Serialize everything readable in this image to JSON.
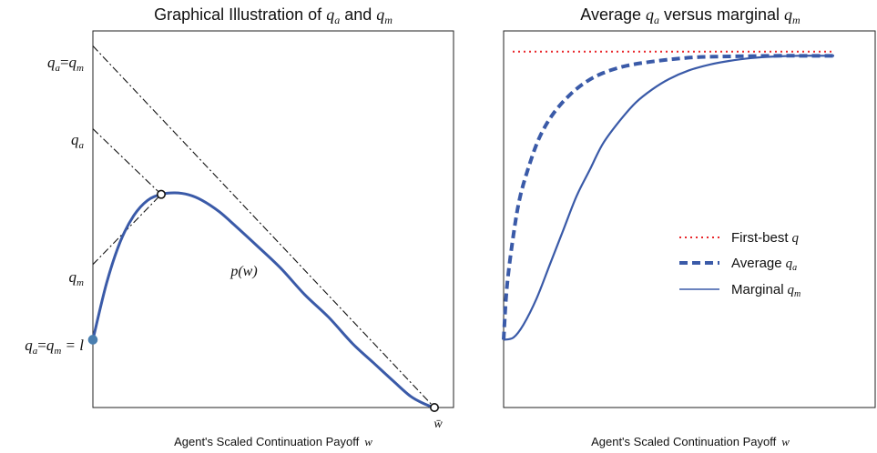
{
  "chart_data": [
    {
      "type": "line",
      "title": "Graphical Illustration of q_a and q_m",
      "title_parts": [
        "Graphical Illustration of ",
        "q",
        "a",
        " and ",
        "q",
        "m"
      ],
      "xlabel": "Agent's Scaled Continuation Payoff",
      "xlabel_var": "w",
      "x_tick_label": "w̄",
      "y_tick_labels": [
        {
          "q1": "q",
          "s1": "a",
          "eq": "=",
          "q2": "q",
          "s2": "m",
          "tail": ""
        },
        {
          "q1": "q",
          "s1": "a",
          "eq": "",
          "q2": "",
          "s2": "",
          "tail": ""
        },
        {
          "q1": "q",
          "s1": "m",
          "eq": "",
          "q2": "",
          "s2": "",
          "tail": ""
        },
        {
          "q1": "q",
          "s1": "a",
          "eq": "=",
          "q2": "q",
          "s2": "m",
          "tail": " = l"
        }
      ],
      "curve_label": "p(w)",
      "xlim": [
        0,
        1
      ],
      "ylim": [
        0,
        1
      ],
      "series": [
        {
          "name": "p(w)",
          "style": "solid",
          "color": "#3a5aa8",
          "x": [
            0.0,
            0.04,
            0.08,
            0.12,
            0.16,
            0.2,
            0.24,
            0.28,
            0.32,
            0.37,
            0.42,
            0.48,
            0.55,
            0.62,
            0.69,
            0.76,
            0.82,
            0.88,
            0.93,
            0.97,
            1.0
          ],
          "y": [
            0.18,
            0.33,
            0.44,
            0.51,
            0.55,
            0.566,
            0.57,
            0.565,
            0.55,
            0.52,
            0.48,
            0.43,
            0.37,
            0.3,
            0.24,
            0.17,
            0.12,
            0.07,
            0.03,
            0.01,
            0.0
          ]
        }
      ],
      "tangent_lines": [
        {
          "y_intercept": 0.38,
          "tangent_x": 0.2,
          "tangent_y": 0.566
        },
        {
          "y_intercept": 0.74,
          "tangent_x": 0.2,
          "tangent_y": 0.566
        },
        {
          "y_intercept": 0.96,
          "tangent_x": 1.0,
          "tangent_y": 0.0
        }
      ],
      "markers": [
        {
          "x": 0.0,
          "y": 0.18,
          "kind": "filled"
        },
        {
          "x": 0.2,
          "y": 0.566,
          "kind": "open"
        },
        {
          "x": 1.0,
          "y": 0.0,
          "kind": "open"
        }
      ]
    },
    {
      "type": "line",
      "title": "Average q_a versus marginal q_m",
      "title_parts": [
        "Average ",
        "q",
        "a",
        " versus marginal ",
        "q",
        "m"
      ],
      "xlabel": "Agent's Scaled Continuation Payoff",
      "xlabel_var": "w",
      "xlim": [
        0,
        1
      ],
      "ylim": [
        0,
        1
      ],
      "legend_position": "middle-right",
      "series": [
        {
          "name": "First-best",
          "legend_sym": "q",
          "legend_sub": "",
          "style": "dotted",
          "color": "#e8262a",
          "x": [
            0.0,
            1.0
          ],
          "y": [
            0.945,
            0.945
          ]
        },
        {
          "name": "Average",
          "legend_sym": "q",
          "legend_sub": "a",
          "style": "dashed",
          "color": "#3a5aa8",
          "x": [
            0.0,
            0.01,
            0.03,
            0.05,
            0.08,
            0.11,
            0.15,
            0.2,
            0.25,
            0.3,
            0.36,
            0.42,
            0.5,
            0.58,
            0.66,
            0.74,
            0.82,
            0.9,
            1.0
          ],
          "y": [
            0.18,
            0.32,
            0.46,
            0.56,
            0.65,
            0.72,
            0.78,
            0.83,
            0.865,
            0.888,
            0.905,
            0.915,
            0.924,
            0.93,
            0.932,
            0.933,
            0.934,
            0.934,
            0.934
          ]
        },
        {
          "name": "Marginal",
          "legend_sym": "q",
          "legend_sub": "m",
          "style": "solid",
          "color": "#3a5aa8",
          "x": [
            0.0,
            0.03,
            0.06,
            0.1,
            0.14,
            0.18,
            0.22,
            0.26,
            0.3,
            0.35,
            0.4,
            0.45,
            0.5,
            0.56,
            0.62,
            0.68,
            0.75,
            0.82,
            0.9,
            1.0
          ],
          "y": [
            0.18,
            0.186,
            0.22,
            0.29,
            0.38,
            0.47,
            0.56,
            0.63,
            0.7,
            0.76,
            0.81,
            0.845,
            0.872,
            0.895,
            0.91,
            0.92,
            0.928,
            0.932,
            0.934,
            0.934
          ]
        }
      ]
    }
  ]
}
